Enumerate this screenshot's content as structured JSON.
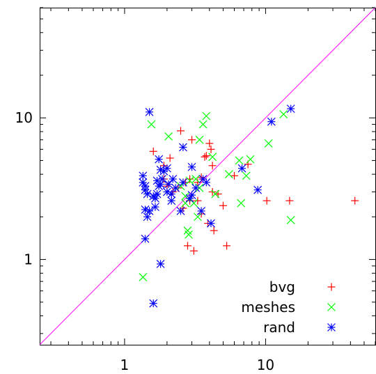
{
  "chart_data": {
    "type": "scatter",
    "title": "",
    "xlabel": "",
    "ylabel": "",
    "x_scale": "log",
    "y_scale": "log",
    "xlim": [
      0.25,
      60
    ],
    "ylim": [
      0.25,
      60
    ],
    "x_tick_labels": [
      {
        "value": 1,
        "label": "1"
      },
      {
        "value": 10,
        "label": "10"
      }
    ],
    "y_tick_labels": [
      {
        "value": 1,
        "label": "1"
      },
      {
        "value": 10,
        "label": "10"
      }
    ],
    "diagonal": {
      "color": "#ff00ff",
      "from": [
        0.25,
        0.25
      ],
      "to": [
        60,
        60
      ]
    },
    "legend_position": "bottom-right",
    "grid": false,
    "series": [
      {
        "name": "bvg",
        "marker": "plus",
        "color": "#ff0000",
        "points": [
          [
            1.6,
            5.8
          ],
          [
            1.9,
            4.6
          ],
          [
            2.1,
            5.2
          ],
          [
            2.5,
            8.1
          ],
          [
            3.0,
            7.0
          ],
          [
            3.7,
            5.3
          ],
          [
            3.8,
            5.4
          ],
          [
            4.0,
            6.6
          ],
          [
            4.1,
            6.0
          ],
          [
            4.2,
            4.6
          ],
          [
            2.0,
            3.3
          ],
          [
            2.2,
            3.0
          ],
          [
            2.4,
            3.2
          ],
          [
            2.7,
            3.5
          ],
          [
            2.9,
            3.7
          ],
          [
            3.3,
            3.5
          ],
          [
            3.5,
            3.8
          ],
          [
            4.2,
            3.0
          ],
          [
            4.6,
            2.9
          ],
          [
            3.3,
            2.6
          ],
          [
            2.6,
            2.3
          ],
          [
            2.9,
            2.6
          ],
          [
            3.5,
            2.1
          ],
          [
            3.9,
            1.8
          ],
          [
            4.3,
            1.6
          ],
          [
            5.0,
            2.4
          ],
          [
            6.0,
            3.9
          ],
          [
            7.5,
            4.7
          ],
          [
            10.2,
            2.6
          ],
          [
            14.8,
            2.6
          ],
          [
            43.0,
            2.6
          ],
          [
            2.8,
            1.25
          ],
          [
            3.1,
            1.15
          ],
          [
            5.3,
            1.25
          ],
          [
            1.9,
            3.7
          ]
        ]
      },
      {
        "name": "meshes",
        "marker": "cross",
        "color": "#00ff00",
        "points": [
          [
            1.55,
            9.0
          ],
          [
            2.05,
            7.4
          ],
          [
            3.4,
            7.0
          ],
          [
            3.6,
            9.0
          ],
          [
            3.8,
            10.3
          ],
          [
            4.2,
            5.3
          ],
          [
            2.5,
            3.3
          ],
          [
            2.9,
            3.6
          ],
          [
            3.2,
            3.7
          ],
          [
            3.4,
            3.2
          ],
          [
            2.7,
            2.8
          ],
          [
            3.1,
            2.5
          ],
          [
            3.3,
            2.0
          ],
          [
            4.4,
            2.9
          ],
          [
            5.5,
            4.0
          ],
          [
            6.5,
            5.0
          ],
          [
            7.3,
            3.9
          ],
          [
            7.8,
            5.1
          ],
          [
            6.7,
            2.5
          ],
          [
            10.5,
            6.6
          ],
          [
            13.4,
            10.6
          ],
          [
            15.1,
            1.9
          ],
          [
            2.8,
            1.6
          ],
          [
            2.85,
            1.5
          ],
          [
            1.35,
            0.75
          ],
          [
            2.7,
            2.5
          ]
        ]
      },
      {
        "name": "rand",
        "marker": "star",
        "color": "#0000ff",
        "points": [
          [
            1.5,
            11.0
          ],
          [
            1.35,
            3.9
          ],
          [
            1.35,
            3.5
          ],
          [
            1.4,
            3.3
          ],
          [
            1.4,
            3.1
          ],
          [
            1.45,
            2.9
          ],
          [
            1.4,
            2.25
          ],
          [
            1.5,
            2.2
          ],
          [
            1.45,
            2.0
          ],
          [
            1.6,
            2.8
          ],
          [
            1.65,
            2.7
          ],
          [
            1.7,
            2.9
          ],
          [
            1.75,
            3.3
          ],
          [
            1.7,
            3.6
          ],
          [
            1.8,
            3.4
          ],
          [
            1.85,
            3.7
          ],
          [
            1.8,
            4.3
          ],
          [
            1.9,
            4.2
          ],
          [
            2.0,
            4.4
          ],
          [
            1.75,
            5.1
          ],
          [
            2.05,
            3.4
          ],
          [
            2.15,
            2.9
          ],
          [
            2.2,
            3.7
          ],
          [
            2.3,
            3.2
          ],
          [
            2.15,
            2.6
          ],
          [
            2.5,
            2.2
          ],
          [
            2.6,
            3.5
          ],
          [
            2.6,
            6.2
          ],
          [
            3.0,
            4.5
          ],
          [
            3.2,
            3.2
          ],
          [
            3.6,
            3.7
          ],
          [
            3.8,
            3.5
          ],
          [
            2.9,
            2.7
          ],
          [
            3.0,
            2.85
          ],
          [
            3.5,
            2.2
          ],
          [
            4.1,
            1.8
          ],
          [
            6.8,
            4.4
          ],
          [
            8.8,
            3.1
          ],
          [
            11.0,
            9.4
          ],
          [
            15.1,
            11.6
          ],
          [
            1.4,
            1.4
          ],
          [
            1.8,
            0.93
          ],
          [
            1.6,
            0.49
          ],
          [
            1.65,
            2.35
          ],
          [
            2.0,
            3.0
          ]
        ]
      }
    ]
  }
}
